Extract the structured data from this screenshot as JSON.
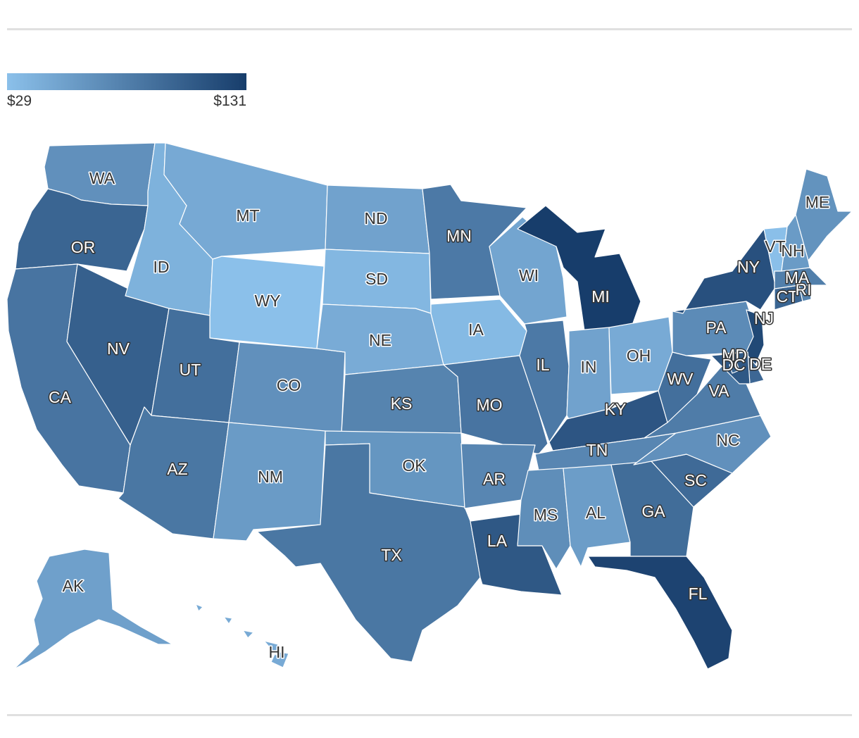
{
  "legend": {
    "min_label": "$29",
    "max_label": "$131",
    "min_value": 29,
    "max_value": 131,
    "color_low": "#8bc0ea",
    "color_high": "#173d6b"
  },
  "states": {
    "WA": {
      "label": "WA",
      "value": 66
    },
    "OR": {
      "label": "OR",
      "value": 100
    },
    "CA": {
      "label": "CA",
      "value": 88
    },
    "NV": {
      "label": "NV",
      "value": 104
    },
    "ID": {
      "label": "ID",
      "value": 40
    },
    "MT": {
      "label": "MT",
      "value": 47
    },
    "WY": {
      "label": "WY",
      "value": 29
    },
    "UT": {
      "label": "UT",
      "value": 92
    },
    "AZ": {
      "label": "AZ",
      "value": 86
    },
    "CO": {
      "label": "CO",
      "value": 66
    },
    "NM": {
      "label": "NM",
      "value": 58
    },
    "ND": {
      "label": "ND",
      "value": 52
    },
    "SD": {
      "label": "SD",
      "value": 36
    },
    "NE": {
      "label": "NE",
      "value": 45
    },
    "KS": {
      "label": "KS",
      "value": 76
    },
    "OK": {
      "label": "OK",
      "value": 62
    },
    "TX": {
      "label": "TX",
      "value": 86
    },
    "MN": {
      "label": "MN",
      "value": 84
    },
    "IA": {
      "label": "IA",
      "value": 34
    },
    "MO": {
      "label": "MO",
      "value": 88
    },
    "AR": {
      "label": "AR",
      "value": 74
    },
    "LA": {
      "label": "LA",
      "value": 110
    },
    "WI": {
      "label": "WI",
      "value": 50
    },
    "IL": {
      "label": "IL",
      "value": 84
    },
    "MI": {
      "label": "MI",
      "value": 131
    },
    "IN": {
      "label": "IN",
      "value": 52
    },
    "OH": {
      "label": "OH",
      "value": 46
    },
    "KY": {
      "label": "KY",
      "value": 112
    },
    "TN": {
      "label": "TN",
      "value": 74
    },
    "MS": {
      "label": "MS",
      "value": 68
    },
    "AL": {
      "label": "AL",
      "value": 56
    },
    "GA": {
      "label": "GA",
      "value": 94
    },
    "FL": {
      "label": "FL",
      "value": 126
    },
    "SC": {
      "label": "SC",
      "value": 96
    },
    "NC": {
      "label": "NC",
      "value": 66
    },
    "VA": {
      "label": "VA",
      "value": 82
    },
    "WV": {
      "label": "WV",
      "value": 92
    },
    "PA": {
      "label": "PA",
      "value": 70
    },
    "NY": {
      "label": "NY",
      "value": 116
    },
    "NJ": {
      "label": "NJ",
      "value": 122
    },
    "DE": {
      "label": "DE",
      "value": 98
    },
    "MD": {
      "label": "MD",
      "value": 110
    },
    "DC": {
      "label": "DC",
      "value": 100
    },
    "CT": {
      "label": "CT",
      "value": 100
    },
    "RI": {
      "label": "RI",
      "value": 76
    },
    "MA": {
      "label": "MA",
      "value": 80
    },
    "VT": {
      "label": "VT",
      "value": 30
    },
    "NH": {
      "label": "NH",
      "value": 58
    },
    "ME": {
      "label": "ME",
      "value": 64
    },
    "AK": {
      "label": "AK",
      "value": 54
    },
    "HI": {
      "label": "HI",
      "value": 46
    }
  }
}
